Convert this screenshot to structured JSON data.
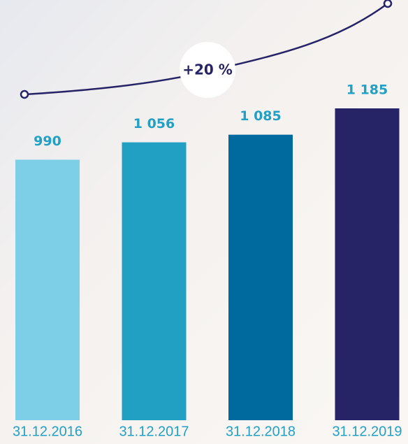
{
  "chart_data": {
    "type": "bar",
    "categories": [
      "31.12.2016",
      "31.12.2017",
      "31.12.2018",
      "31.12.2019"
    ],
    "values": [
      990,
      1056,
      1085,
      1185
    ],
    "value_labels": [
      "990",
      "1 056",
      "1 085",
      "1 185"
    ],
    "colors": [
      "#7ccfe6",
      "#22a0c4",
      "#00699e",
      "#272367"
    ],
    "annotation": "+20 %"
  }
}
